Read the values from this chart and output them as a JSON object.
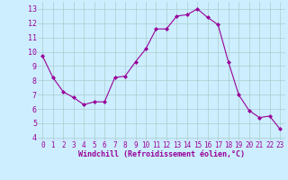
{
  "x": [
    0,
    1,
    2,
    3,
    4,
    5,
    6,
    7,
    8,
    9,
    10,
    11,
    12,
    13,
    14,
    15,
    16,
    17,
    18,
    19,
    20,
    21,
    22,
    23
  ],
  "y": [
    9.7,
    8.2,
    7.2,
    6.8,
    6.3,
    6.5,
    6.5,
    8.2,
    8.3,
    9.3,
    10.2,
    11.6,
    11.6,
    12.5,
    12.6,
    13.0,
    12.4,
    11.9,
    9.3,
    7.0,
    5.9,
    5.4,
    5.5,
    4.6
  ],
  "line_color": "#990099",
  "marker_color": "#990099",
  "bg_color": "#cceeff",
  "grid_color": "#aacccc",
  "xlabel": "Windchill (Refroidissement éolien,°C)",
  "xlabel_color": "#990099",
  "tick_color": "#990099",
  "ylim": [
    3.8,
    13.5
  ],
  "xlim": [
    -0.5,
    23.5
  ],
  "yticks": [
    4,
    5,
    6,
    7,
    8,
    9,
    10,
    11,
    12,
    13
  ],
  "xticks": [
    0,
    1,
    2,
    3,
    4,
    5,
    6,
    7,
    8,
    9,
    10,
    11,
    12,
    13,
    14,
    15,
    16,
    17,
    18,
    19,
    20,
    21,
    22,
    23
  ],
  "figsize": [
    3.2,
    2.0
  ],
  "dpi": 100
}
